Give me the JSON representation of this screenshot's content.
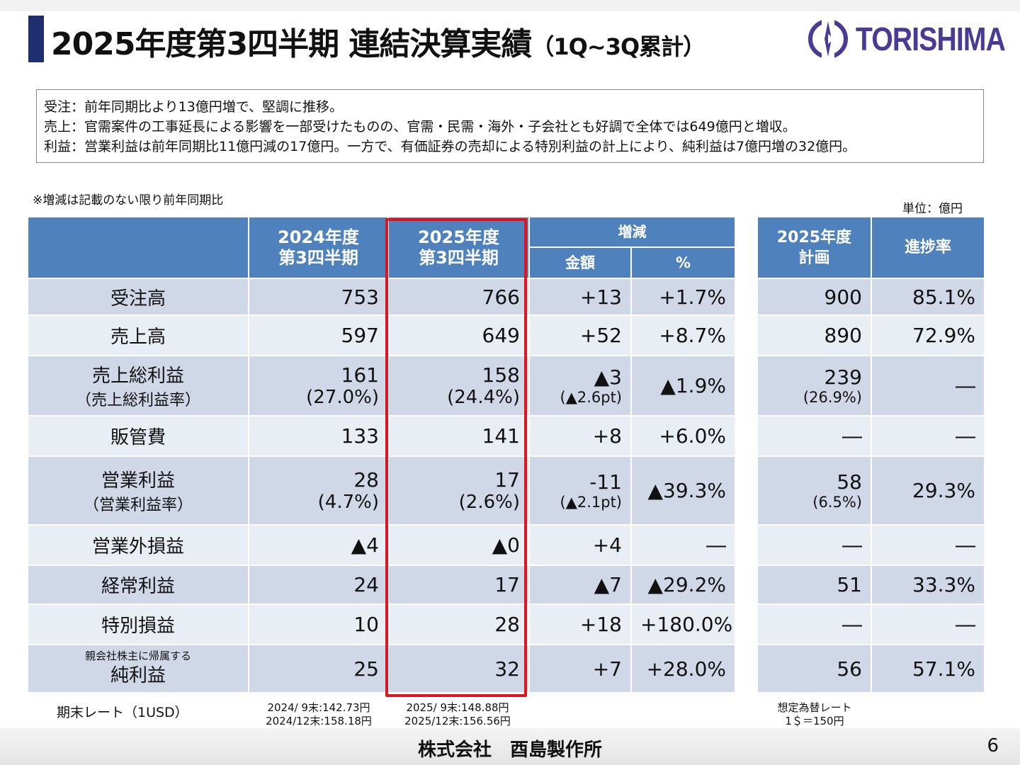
{
  "title": {
    "main": "2025年度第3四半期 連結決算実績",
    "suffix": "（1Q~3Q累計）"
  },
  "logo": {
    "text": "TORISHIMA",
    "color": "#4a3a96"
  },
  "summary": [
    "受注：前年同期比より13億円増で、堅調に推移。",
    "売上：官需案件の工事延長による影響を一部受けたものの、官需・民需・海外・子会社とも好調で全体では649億円と増収。",
    "利益：営業利益は前年同期比11億円減の17億円。一方で、有価証券の売却による特別利益の計上により、純利益は7億円増の32億円。"
  ],
  "note": "※増減は記載のない限り前年同期比",
  "unit": "単位：億円",
  "headers": {
    "y2024": "2024年度\n第3四半期",
    "y2025": "2025年度\n第3四半期",
    "change": "増減",
    "amount": "金額",
    "pct": "%",
    "plan": "2025年度\n計画",
    "progress": "進捗率"
  },
  "rows": [
    {
      "label": "受注高",
      "pre": "",
      "sub": "",
      "a": "753",
      "a2": "",
      "b": "766",
      "b2": "",
      "d": "+13",
      "d2": "",
      "p": "+1.7%",
      "plan": "900",
      "plan2": "",
      "prog": "85.1%"
    },
    {
      "label": "売上高",
      "pre": "",
      "sub": "",
      "a": "597",
      "a2": "",
      "b": "649",
      "b2": "",
      "d": "+52",
      "d2": "",
      "p": "+8.7%",
      "plan": "890",
      "plan2": "",
      "prog": "72.9%"
    },
    {
      "label": "売上総利益",
      "pre": "",
      "sub": "（売上総利益率）",
      "a": "161",
      "a2": "(27.0%)",
      "b": "158",
      "b2": "(24.4%)",
      "d": "▲3",
      "d2": "(▲2.6pt)",
      "p": "▲1.9%",
      "plan": "239",
      "plan2": "(26.9%)",
      "prog": "―"
    },
    {
      "label": "販管費",
      "pre": "",
      "sub": "",
      "a": "133",
      "a2": "",
      "b": "141",
      "b2": "",
      "d": "+8",
      "d2": "",
      "p": "+6.0%",
      "plan": "―",
      "plan2": "",
      "prog": "―"
    },
    {
      "label": "営業利益",
      "pre": "",
      "sub": "（営業利益率）",
      "a": "28",
      "a2": "(4.7%)",
      "b": "17",
      "b2": "(2.6%)",
      "d": "-11",
      "d2": "(▲2.1pt)",
      "p": "▲39.3%",
      "plan": "58",
      "plan2": "(6.5%)",
      "prog": "29.3%"
    },
    {
      "label": "営業外損益",
      "pre": "",
      "sub": "",
      "a": "▲4",
      "a2": "",
      "b": "▲0",
      "b2": "",
      "d": "+4",
      "d2": "",
      "p": "―",
      "plan": "―",
      "plan2": "",
      "prog": "―"
    },
    {
      "label": "経常利益",
      "pre": "",
      "sub": "",
      "a": "24",
      "a2": "",
      "b": "17",
      "b2": "",
      "d": "▲7",
      "d2": "",
      "p": "▲29.2%",
      "plan": "51",
      "plan2": "",
      "prog": "33.3%"
    },
    {
      "label": "特別損益",
      "pre": "",
      "sub": "",
      "a": "10",
      "a2": "",
      "b": "28",
      "b2": "",
      "d": "+18",
      "d2": "",
      "p": "+180.0%",
      "plan": "―",
      "plan2": "",
      "prog": "―"
    },
    {
      "label": "純利益",
      "pre": "親会社株主に帰属する",
      "sub": "",
      "a": "25",
      "a2": "",
      "b": "32",
      "b2": "",
      "d": "+7",
      "d2": "",
      "p": "+28.0%",
      "plan": "56",
      "plan2": "",
      "prog": "57.1%"
    }
  ],
  "rates": {
    "label": "期末レート（1USD）",
    "y2024": [
      "2024/ 9末:142.73円",
      "2024/12末:158.18円"
    ],
    "y2025": [
      "2025/ 9末:148.88円",
      "2025/12末:156.56円"
    ],
    "plan": [
      "想定為替レート",
      "1＄＝150円"
    ]
  },
  "footer": {
    "company": "株式会社　酉島製作所",
    "page": "6"
  },
  "colors": {
    "header": "#4f81bd",
    "row_dark": "#d0d8e8",
    "row_light": "#e9edf4",
    "highlight": "#e0141e",
    "accent": "#1f2f6e"
  }
}
